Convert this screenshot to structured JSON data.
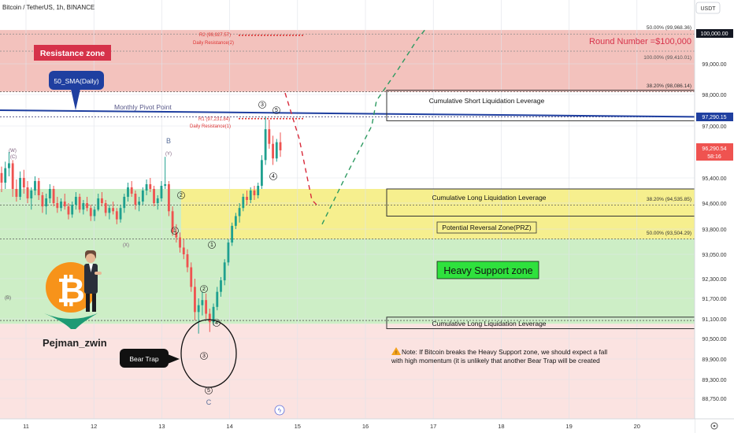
{
  "symbol_title": "Bitcoin / TetherUS, 1h, BINANCE",
  "currency": "USDT",
  "colors": {
    "resistance_zone": "#f3c2bd",
    "support_zone": "#cdeec6",
    "prz_zone": "#f6ef8e",
    "lower_zone": "#fbe3e1",
    "candle_up": "#1fa08f",
    "candle_down": "#ef5350",
    "sma_line": "#1f3fa0",
    "price_badge": "#1f3fa0",
    "current_badge": "#ef5350"
  },
  "chart_data": {
    "type": "candlestick",
    "x_ticks": [
      "11",
      "12",
      "13",
      "14",
      "15",
      "16",
      "17",
      "18",
      "19",
      "20"
    ],
    "y_ticks": [
      "99,000.00",
      "98,000.00",
      "97,000.00",
      "95,400.00",
      "94,600.00",
      "93,800.00",
      "93,050.00",
      "92,300.00",
      "91,700.00",
      "91,100.00",
      "90,500.00",
      "89,900.00",
      "89,300.00",
      "88,750.00"
    ],
    "y_range": [
      88500,
      100500
    ],
    "price_tags": {
      "top": "100,000.00",
      "sma": "97,290.15",
      "current_price": "96,290.54",
      "countdown": "58:16"
    },
    "fib_labels": {
      "f50_top": "50.00% (99,968.36)",
      "f100": "100.00% (99,410.01)",
      "f382_top": "38.20% (98,086.14)",
      "f382_mid": "38.20% (94,535.85)",
      "f50_mid": "50.00% (93,504.29)"
    },
    "pivot_labels": {
      "r2": "R2 (99,927.57)",
      "r2_name": "Daily Resistance(2)",
      "r1": "R1 (97,231.84)",
      "r1_name": "Daily Resistance(1)",
      "monthly": "Monthly Pivot Point"
    },
    "zone_labels": {
      "round_number": "Round Number =$100,000",
      "resistance_zone": "Resistance zone",
      "sma_callout": "50_SMA(Daily)",
      "short_liq": "Cumulative Short Liquidation Leverage",
      "long_liq_1": "Cumulative Long Liquidation Leverage",
      "prz": "Potential Reversal Zone(PRZ)",
      "heavy_support": "Heavy Support zone",
      "long_liq_2": "Cumulative Long Liquidation Leverage",
      "bear_trap": "Bear Trap",
      "author": "Pejman_zwin"
    },
    "note": {
      "line1": "Note: If Bitcoin breaks the Heavy Support zone, we should expect a fall",
      "line2": "with high momentum (it is unlikely that another Bear Trap will be created"
    },
    "wave_labels": [
      "(W)",
      "(C)",
      "(X)",
      "(Y)",
      "(B)",
      "B",
      "C",
      "1",
      "2",
      "3",
      "4",
      "5",
      "1",
      "2",
      "3",
      "4",
      "5"
    ],
    "candles": [
      [
        95550,
        95750,
        94950,
        95250
      ],
      [
        95250,
        95900,
        95050,
        95700
      ],
      [
        95700,
        96200,
        95450,
        95850
      ],
      [
        95850,
        95950,
        94800,
        95050
      ],
      [
        95050,
        95350,
        94650,
        94800
      ],
      [
        94800,
        95600,
        94700,
        95400
      ],
      [
        95400,
        95650,
        94900,
        95100
      ],
      [
        95100,
        95300,
        94600,
        94750
      ],
      [
        94750,
        95100,
        94400,
        95000
      ],
      [
        95000,
        95450,
        94850,
        95300
      ],
      [
        95300,
        95400,
        94700,
        94850
      ],
      [
        94850,
        94950,
        94300,
        94500
      ],
      [
        94500,
        94900,
        94250,
        94750
      ],
      [
        94750,
        95200,
        94600,
        95050
      ],
      [
        95050,
        95150,
        94500,
        94600
      ],
      [
        94600,
        94800,
        94300,
        94450
      ],
      [
        94450,
        94750,
        94350,
        94650
      ],
      [
        94650,
        94900,
        94400,
        94500
      ],
      [
        94500,
        94600,
        94100,
        94250
      ],
      [
        94250,
        94650,
        94150,
        94550
      ],
      [
        94550,
        94950,
        94400,
        94800
      ],
      [
        94800,
        94900,
        94300,
        94400
      ],
      [
        94400,
        94700,
        94250,
        94600
      ],
      [
        94600,
        94800,
        94350,
        94450
      ],
      [
        94450,
        94550,
        94050,
        94200
      ],
      [
        94200,
        94500,
        94050,
        94400
      ],
      [
        94400,
        94900,
        94350,
        94750
      ],
      [
        94750,
        94950,
        94500,
        94600
      ],
      [
        94600,
        94700,
        94200,
        94300
      ],
      [
        94300,
        94550,
        94100,
        94450
      ],
      [
        94450,
        94650,
        94250,
        94350
      ],
      [
        94350,
        94450,
        93950,
        94100
      ],
      [
        94100,
        94550,
        94000,
        94450
      ],
      [
        94450,
        94900,
        94300,
        94800
      ],
      [
        94800,
        95250,
        94650,
        95100
      ],
      [
        95100,
        95300,
        94800,
        94900
      ],
      [
        94900,
        95000,
        94400,
        94550
      ],
      [
        94550,
        94800,
        94350,
        94650
      ],
      [
        94650,
        95100,
        94550,
        95000
      ],
      [
        95000,
        95350,
        94850,
        95200
      ],
      [
        95200,
        95400,
        94950,
        95050
      ],
      [
        95050,
        95150,
        94500,
        94600
      ],
      [
        94600,
        94850,
        94400,
        94750
      ],
      [
        94750,
        95300,
        94650,
        95150
      ],
      [
        95150,
        96050,
        95050,
        95200
      ],
      [
        95200,
        95300,
        94200,
        94350
      ],
      [
        94350,
        94500,
        93600,
        93700
      ],
      [
        93700,
        93950,
        93400,
        93550
      ],
      [
        93550,
        93700,
        93100,
        93250
      ],
      [
        93250,
        93500,
        92900,
        93050
      ],
      [
        93050,
        93200,
        92500,
        92650
      ],
      [
        92650,
        92800,
        91900,
        92050
      ],
      [
        92050,
        92300,
        91050,
        91300
      ],
      [
        91300,
        91700,
        90650,
        91500
      ],
      [
        91500,
        91900,
        91200,
        91650
      ],
      [
        91650,
        91850,
        91100,
        91250
      ],
      [
        91250,
        91400,
        90700,
        91000
      ],
      [
        91000,
        91550,
        90900,
        91450
      ],
      [
        91450,
        92050,
        91350,
        91900
      ],
      [
        91900,
        92350,
        91750,
        92250
      ],
      [
        92250,
        92900,
        92100,
        92800
      ],
      [
        92800,
        93500,
        92700,
        93400
      ],
      [
        93400,
        94000,
        93300,
        93900
      ],
      [
        93900,
        94300,
        93800,
        94200
      ],
      [
        94200,
        94600,
        94000,
        94450
      ],
      [
        94450,
        94900,
        94350,
        94800
      ],
      [
        94800,
        95000,
        94550,
        94700
      ],
      [
        94700,
        95100,
        94600,
        95000
      ],
      [
        95000,
        95150,
        94700,
        94850
      ],
      [
        94850,
        95250,
        94750,
        95150
      ],
      [
        95150,
        96100,
        95050,
        95950
      ],
      [
        95950,
        97300,
        95800,
        96900
      ],
      [
        96900,
        97200,
        96300,
        96450
      ],
      [
        96450,
        96700,
        95800,
        96000
      ],
      [
        96000,
        96600,
        95900,
        96500
      ],
      [
        96500,
        96800,
        96050,
        96250
      ]
    ],
    "markers": {
      "n1": 97390,
      "n3": 96825,
      "g1": 94450,
      "g2": 93850,
      "g3": 93040,
      "g4": 92300,
      "g5": 91550,
      "g6": 90470,
      "g8": 89000,
      "g9": 88550,
      "g10": 91110
    }
  }
}
